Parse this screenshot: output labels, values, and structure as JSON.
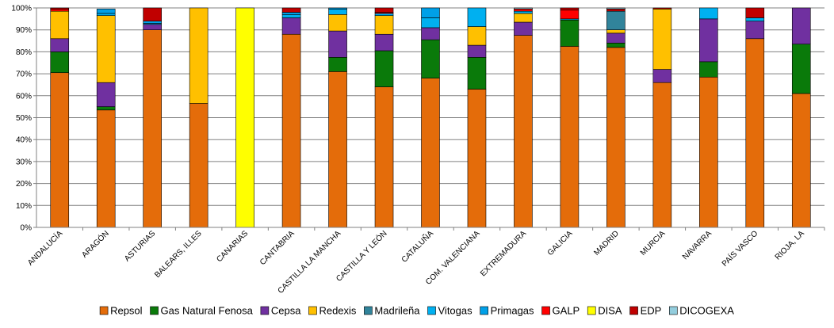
{
  "chart_data": {
    "type": "bar",
    "stacked": true,
    "percent": true,
    "title": "",
    "xlabel": "",
    "ylabel": "",
    "ylim": [
      0,
      100
    ],
    "y_ticks": [
      "0%",
      "10%",
      "20%",
      "30%",
      "40%",
      "50%",
      "60%",
      "70%",
      "80%",
      "90%",
      "100%"
    ],
    "grid": true,
    "legend_position": "bottom",
    "categories": [
      "ANDALUCÍA",
      "ARAGÓN",
      "ASTURIAS",
      "BALEARS, ILLES",
      "CANARIAS",
      "CANTABRIA",
      "CASTILLA LA MANCHA",
      "CASTILLA Y LEÓN",
      "CATALUÑA",
      "COM. VALENCIANA",
      "EXTREMADURA",
      "GALICIA",
      "MADRID",
      "MURCIA",
      "NAVARRA",
      "PAÍS VASCO",
      "RIOJA, LA"
    ],
    "series": [
      {
        "name": "Repsol",
        "color": "#E46C0A",
        "values": [
          70.5,
          53.5,
          90,
          56.5,
          0,
          88,
          71,
          64,
          68,
          63,
          87.5,
          82.5,
          82,
          66,
          68.5,
          86,
          61
        ]
      },
      {
        "name": "Gas Natural Fenosa",
        "color": "#0A7A0A",
        "values": [
          9.5,
          1.5,
          0,
          0,
          0,
          0,
          6.5,
          16.5,
          17.5,
          14.5,
          0,
          12,
          2,
          0,
          7,
          0,
          22.5
        ]
      },
      {
        "name": "Cepsa",
        "color": "#7030A0",
        "values": [
          6,
          11,
          2.5,
          0,
          0,
          7.5,
          12,
          7.5,
          5.5,
          5.5,
          6,
          0,
          4.5,
          6,
          19.5,
          8,
          16.5
        ]
      },
      {
        "name": "Redexis",
        "color": "#FFC000",
        "values": [
          12.5,
          30.5,
          0,
          43.5,
          0,
          0,
          7.5,
          8.5,
          0,
          8.5,
          4,
          0,
          1.5,
          27.5,
          0,
          0,
          0
        ]
      },
      {
        "name": "Madrileña",
        "color": "#31849B",
        "values": [
          0,
          0,
          0,
          0,
          0,
          0,
          0,
          0,
          0,
          0,
          0,
          0,
          8.5,
          0,
          0,
          0,
          0
        ]
      },
      {
        "name": "Vitogas",
        "color": "#00B0F0",
        "values": [
          0,
          1,
          0.5,
          0,
          0,
          1.5,
          2.5,
          1,
          4.5,
          8.5,
          1,
          0.5,
          0,
          0,
          5,
          1.5,
          0
        ]
      },
      {
        "name": "Primagas",
        "color": "#00A0E8",
        "values": [
          0,
          2,
          1,
          0,
          0,
          1,
          0.5,
          0,
          4.5,
          0,
          0,
          0,
          0,
          0,
          0,
          0,
          0
        ]
      },
      {
        "name": "GALP",
        "color": "#FF0000",
        "values": [
          1,
          0,
          0,
          0,
          0,
          0,
          0,
          0.5,
          0,
          0,
          1,
          4,
          0,
          0,
          0,
          0,
          0
        ]
      },
      {
        "name": "DISA",
        "color": "#FFFF00",
        "values": [
          0,
          0,
          0,
          0,
          100,
          0,
          0,
          0,
          0,
          0,
          0,
          0,
          0,
          0,
          0,
          0,
          0
        ]
      },
      {
        "name": "EDP",
        "color": "#C00000",
        "values": [
          0.5,
          0,
          6,
          0,
          0,
          2,
          0,
          2,
          0,
          0,
          0,
          1,
          1,
          0.5,
          0,
          4.5,
          0
        ]
      },
      {
        "name": "DICOGEXA",
        "color": "#93CDDD",
        "values": [
          0,
          0,
          0,
          0,
          0,
          0,
          0,
          0,
          0,
          0,
          0.5,
          0,
          0.5,
          0,
          0,
          0,
          0
        ]
      }
    ]
  }
}
